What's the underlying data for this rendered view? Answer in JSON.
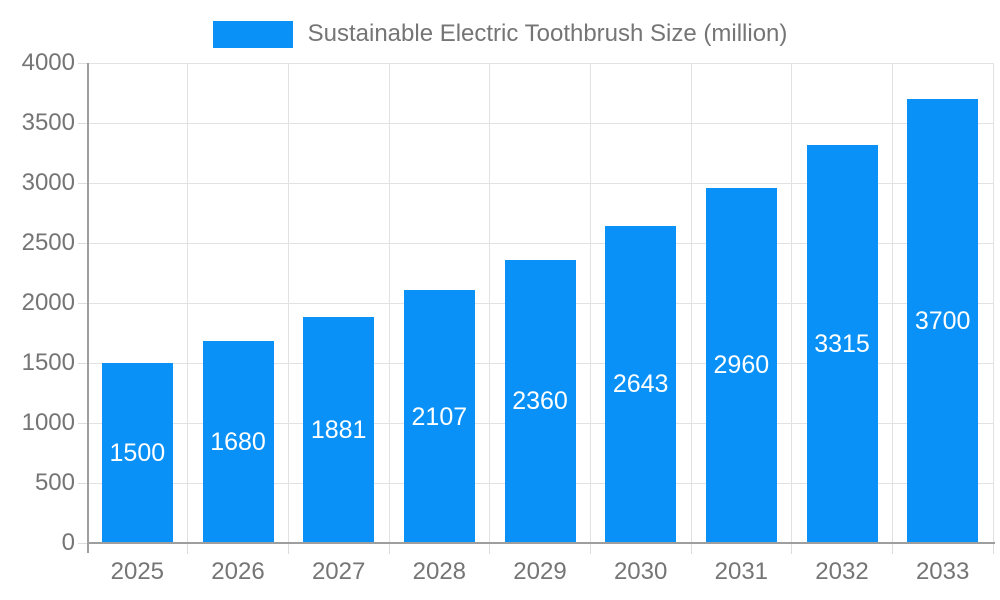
{
  "chart_data": {
    "type": "bar",
    "title": "Sustainable Electric Toothbrush Size (million)",
    "categories": [
      "2025",
      "2026",
      "2027",
      "2028",
      "2029",
      "2030",
      "2031",
      "2032",
      "2033"
    ],
    "values": [
      1500,
      1680,
      1881,
      2107,
      2360,
      2643,
      2960,
      3315,
      3700
    ],
    "xlabel": "",
    "ylabel": "",
    "ylim": [
      0,
      4000
    ],
    "ytick_step": 500,
    "ytick_labels": [
      "0",
      "500",
      "1000",
      "1500",
      "2000",
      "2500",
      "3000",
      "3500",
      "4000"
    ],
    "grid": true,
    "legend_position": "top-center",
    "bar_color": "#0991f8",
    "bar_label_color": "#ffffff",
    "axis_text_color": "#757575",
    "grid_color": "#e2e2e2",
    "tick_color": "#dcdcdc",
    "axis_line_color": "#9e9e9e"
  }
}
